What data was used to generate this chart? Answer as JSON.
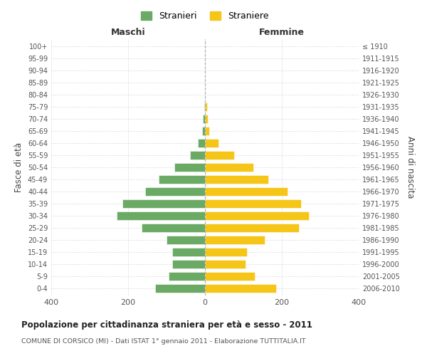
{
  "age_groups": [
    "0-4",
    "5-9",
    "10-14",
    "15-19",
    "20-24",
    "25-29",
    "30-34",
    "35-39",
    "40-44",
    "45-49",
    "50-54",
    "55-59",
    "60-64",
    "65-69",
    "70-74",
    "75-79",
    "80-84",
    "85-89",
    "90-94",
    "95-99",
    "100+"
  ],
  "birth_years": [
    "2006-2010",
    "2001-2005",
    "1996-2000",
    "1991-1995",
    "1986-1990",
    "1981-1985",
    "1976-1980",
    "1971-1975",
    "1966-1970",
    "1961-1965",
    "1956-1960",
    "1951-1955",
    "1946-1950",
    "1941-1945",
    "1936-1940",
    "1931-1935",
    "1926-1930",
    "1921-1925",
    "1916-1920",
    "1911-1915",
    "≤ 1910"
  ],
  "males": [
    130,
    95,
    85,
    85,
    100,
    165,
    230,
    215,
    155,
    120,
    80,
    38,
    18,
    8,
    5,
    2,
    0,
    0,
    0,
    0,
    0
  ],
  "females": [
    185,
    130,
    105,
    110,
    155,
    245,
    270,
    250,
    215,
    165,
    125,
    75,
    35,
    12,
    8,
    5,
    0,
    0,
    0,
    0,
    0
  ],
  "male_color": "#6aaa64",
  "female_color": "#f5c518",
  "male_label": "Stranieri",
  "female_label": "Straniere",
  "title": "Popolazione per cittadinanza straniera per età e sesso - 2011",
  "subtitle": "COMUNE DI CORSICO (MI) - Dati ISTAT 1° gennaio 2011 - Elaborazione TUTTITALIA.IT",
  "left_label": "Maschi",
  "right_label": "Femmine",
  "ylabel_left": "Fasce di età",
  "ylabel_right": "Anni di nascita",
  "xlim": 400,
  "background_color": "#ffffff",
  "grid_color": "#cccccc"
}
